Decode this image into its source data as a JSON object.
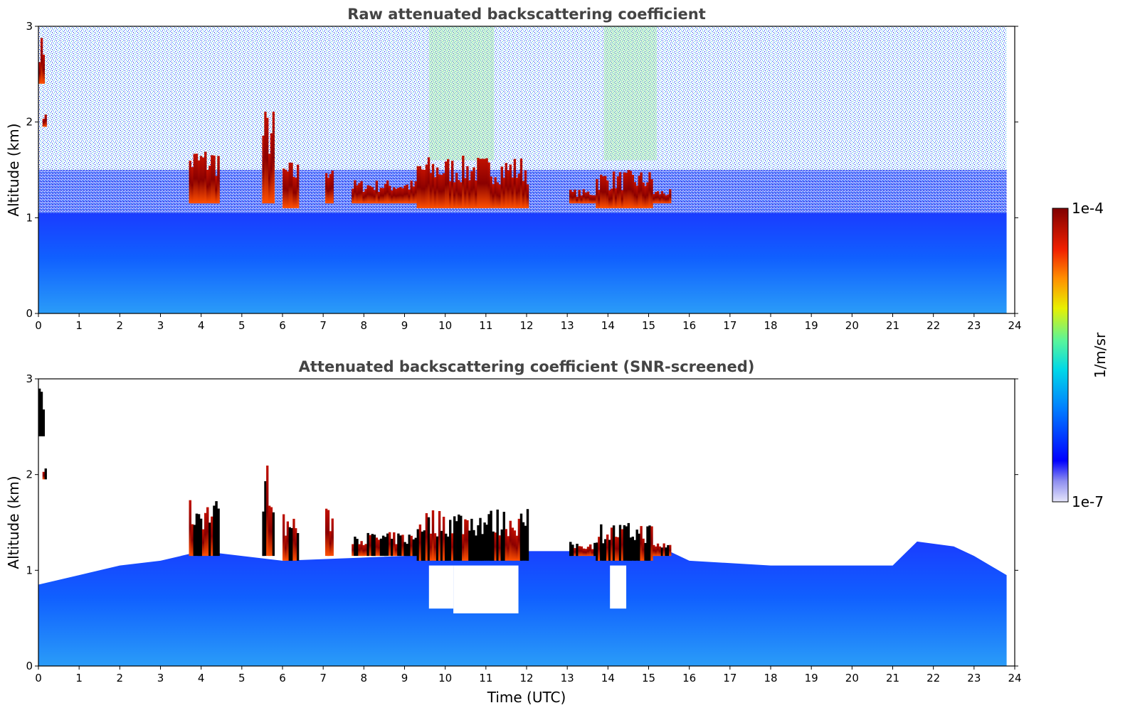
{
  "colors": {
    "background": "#ffffff",
    "title": "#444444",
    "colormap": [
      "#e6e6fa",
      "#0000ff",
      "#0090ff",
      "#00e0e0",
      "#7fff7f",
      "#ffe000",
      "#ff6000",
      "#d00000",
      "#800000"
    ]
  },
  "chart_data": [
    {
      "type": "heatmap",
      "title": "Raw attenuated backscattering coefficient",
      "xlabel": "",
      "ylabel": "Altitude (km)",
      "xlim": [
        0,
        24
      ],
      "ylim": [
        0,
        3
      ],
      "xticks": [
        "0",
        "1",
        "2",
        "3",
        "4",
        "5",
        "6",
        "7",
        "8",
        "9",
        "10",
        "11",
        "12",
        "13",
        "14",
        "15",
        "16",
        "17",
        "18",
        "19",
        "20",
        "21",
        "22",
        "23",
        "24"
      ],
      "yticks": [
        "0",
        "1",
        "2",
        "3"
      ],
      "boundary_layer_top_km": 1.05,
      "cloud_segments": [
        {
          "x0": 0.0,
          "x1": 0.15,
          "base": 2.4,
          "top": 2.9
        },
        {
          "x0": 0.1,
          "x1": 0.2,
          "base": 1.95,
          "top": 2.1
        },
        {
          "x0": 3.7,
          "x1": 4.45,
          "base": 1.15,
          "top": 1.75
        },
        {
          "x0": 5.5,
          "x1": 5.8,
          "base": 1.15,
          "top": 2.15
        },
        {
          "x0": 6.0,
          "x1": 6.4,
          "base": 1.1,
          "top": 1.6
        },
        {
          "x0": 7.05,
          "x1": 7.25,
          "base": 1.15,
          "top": 1.65
        },
        {
          "x0": 7.7,
          "x1": 9.3,
          "base": 1.15,
          "top": 1.4
        },
        {
          "x0": 9.3,
          "x1": 12.05,
          "base": 1.1,
          "top": 1.65
        },
        {
          "x0": 13.05,
          "x1": 13.7,
          "base": 1.15,
          "top": 1.3
        },
        {
          "x0": 13.7,
          "x1": 15.1,
          "base": 1.1,
          "top": 1.5
        },
        {
          "x0": 15.1,
          "x1": 15.55,
          "base": 1.15,
          "top": 1.3
        }
      ]
    },
    {
      "type": "heatmap",
      "title": "Attenuated backscattering coefficient (SNR-screened)",
      "xlabel": "Time (UTC)",
      "ylabel": "Altitude (km)",
      "xlim": [
        0,
        24
      ],
      "ylim": [
        0,
        3
      ],
      "xticks": [
        "0",
        "1",
        "2",
        "3",
        "4",
        "5",
        "6",
        "7",
        "8",
        "9",
        "10",
        "11",
        "12",
        "13",
        "14",
        "15",
        "16",
        "17",
        "18",
        "19",
        "20",
        "21",
        "22",
        "23",
        "24"
      ],
      "yticks": [
        "0",
        "1",
        "2",
        "3"
      ],
      "signal_top_km": [
        {
          "t": 0,
          "z": 0.85
        },
        {
          "t": 1,
          "z": 0.95
        },
        {
          "t": 2,
          "z": 1.05
        },
        {
          "t": 3,
          "z": 1.1
        },
        {
          "t": 4,
          "z": 1.2
        },
        {
          "t": 6,
          "z": 1.1
        },
        {
          "t": 9,
          "z": 1.15
        },
        {
          "t": 12,
          "z": 1.2
        },
        {
          "t": 13,
          "z": 1.2
        },
        {
          "t": 15.5,
          "z": 1.2
        },
        {
          "t": 16,
          "z": 1.1
        },
        {
          "t": 18,
          "z": 1.05
        },
        {
          "t": 21,
          "z": 1.05
        },
        {
          "t": 21.6,
          "z": 1.3
        },
        {
          "t": 22.5,
          "z": 1.25
        },
        {
          "t": 23,
          "z": 1.15
        },
        {
          "t": 23.8,
          "z": 0.95
        }
      ],
      "cloud_segments": [
        {
          "x0": 0.0,
          "x1": 0.15,
          "base": 2.4,
          "top": 2.9
        },
        {
          "x0": 0.1,
          "x1": 0.2,
          "base": 1.95,
          "top": 2.1
        },
        {
          "x0": 3.7,
          "x1": 4.45,
          "base": 1.15,
          "top": 1.75
        },
        {
          "x0": 5.5,
          "x1": 5.8,
          "base": 1.15,
          "top": 2.15
        },
        {
          "x0": 6.0,
          "x1": 6.4,
          "base": 1.1,
          "top": 1.6
        },
        {
          "x0": 7.05,
          "x1": 7.25,
          "base": 1.15,
          "top": 1.65
        },
        {
          "x0": 7.7,
          "x1": 9.3,
          "base": 1.15,
          "top": 1.4
        },
        {
          "x0": 9.3,
          "x1": 12.05,
          "base": 1.1,
          "top": 1.65
        },
        {
          "x0": 13.05,
          "x1": 13.7,
          "base": 1.15,
          "top": 1.3
        },
        {
          "x0": 13.7,
          "x1": 15.1,
          "base": 1.1,
          "top": 1.5
        },
        {
          "x0": 15.1,
          "x1": 15.55,
          "base": 1.15,
          "top": 1.3
        }
      ],
      "screened_gaps": [
        {
          "x0": 9.6,
          "x1": 10.2,
          "base": 0.6,
          "top": 1.05
        },
        {
          "x0": 10.2,
          "x1": 11.8,
          "base": 0.55,
          "top": 1.05
        },
        {
          "x0": 14.05,
          "x1": 14.45,
          "base": 0.6,
          "top": 1.05
        }
      ]
    }
  ],
  "colorbar": {
    "label": "1/m/sr",
    "max_label": "1e-4",
    "min_label": "1e-7"
  }
}
